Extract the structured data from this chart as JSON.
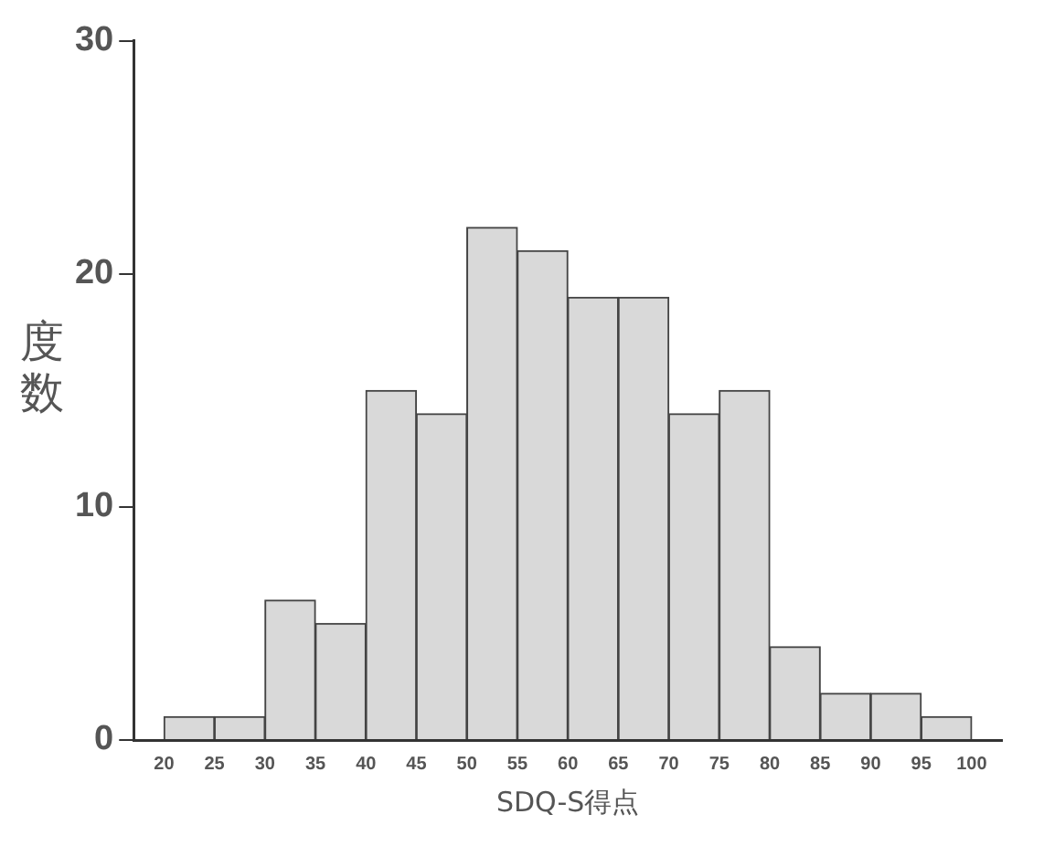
{
  "chart_data": {
    "type": "histogram",
    "xlabel": "SDQ-S得点",
    "ylabel": "度数",
    "bins": [
      20,
      25,
      30,
      35,
      40,
      45,
      50,
      55,
      60,
      65,
      70,
      75,
      80,
      85,
      90,
      95,
      100
    ],
    "values": [
      1,
      1,
      6,
      5,
      15,
      14,
      22,
      21,
      19,
      19,
      14,
      15,
      4,
      2,
      2,
      1
    ],
    "color": "#d9d9d9",
    "xlim": [
      17,
      103
    ],
    "xticks": [
      20,
      25,
      30,
      35,
      40,
      45,
      50,
      55,
      60,
      65,
      70,
      75,
      80,
      85,
      90,
      95,
      100
    ],
    "ylim": [
      0,
      30
    ],
    "yticks": [
      0,
      10,
      20,
      30
    ],
    "grid": false,
    "legend": false
  }
}
